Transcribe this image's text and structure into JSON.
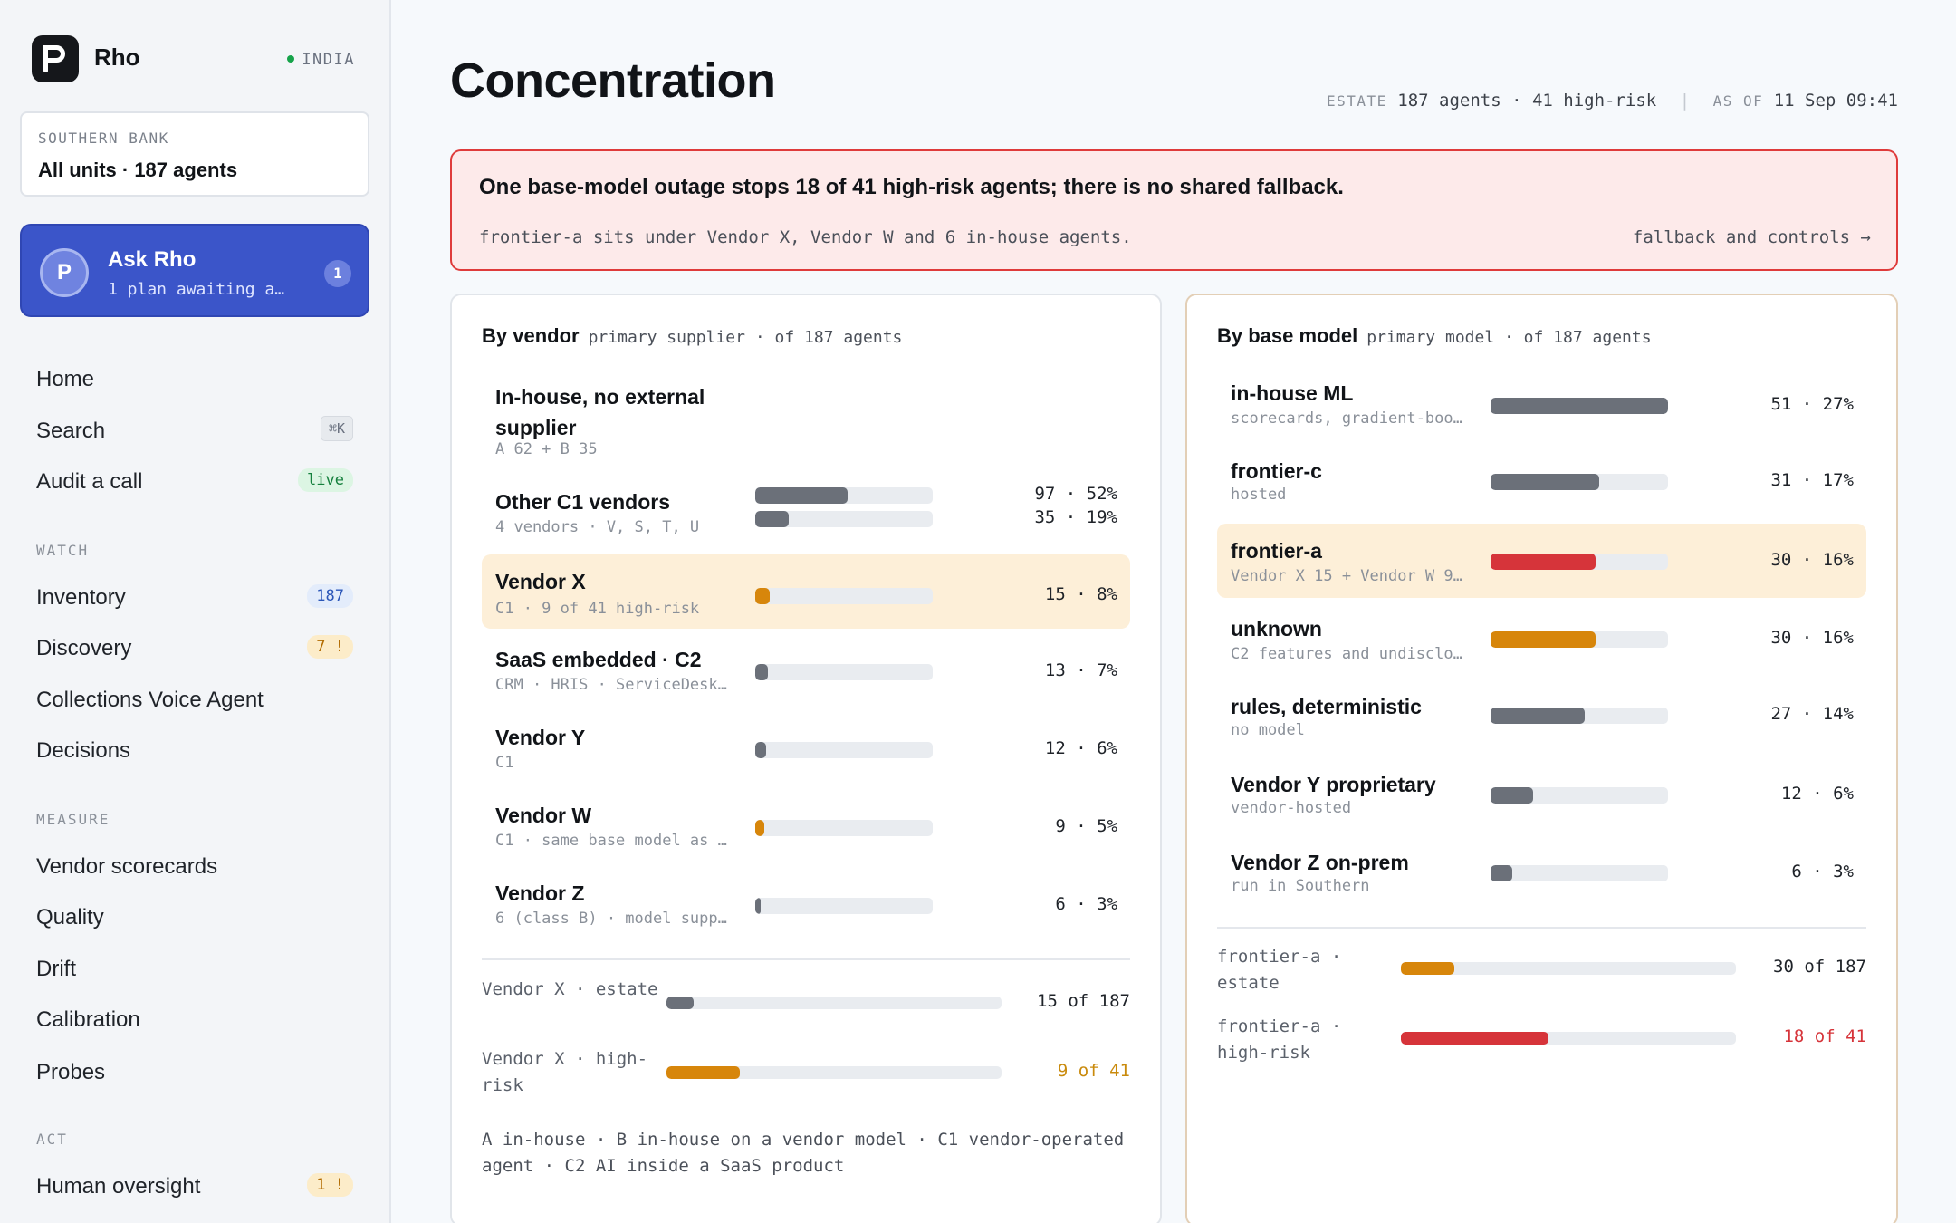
{
  "app": {
    "name": "Rho",
    "region": "INDIA"
  },
  "org": {
    "label": "SOUTHERN BANK",
    "value": "All units · 187 agents"
  },
  "ask": {
    "title": "Ask Rho",
    "subtitle": "1 plan awaiting a…",
    "badge": "1",
    "avatar_letter": "P"
  },
  "nav": {
    "home": "Home",
    "search": "Search",
    "search_shortcut": "⌘K",
    "audit": "Audit a call",
    "audit_badge": "live",
    "watch_label": "WATCH",
    "inventory": "Inventory",
    "inventory_badge": "187",
    "discovery": "Discovery",
    "discovery_badge": "7 !",
    "collections": "Collections Voice Agent",
    "decisions": "Decisions",
    "measure_label": "MEASURE",
    "scorecards": "Vendor scorecards",
    "quality": "Quality",
    "drift": "Drift",
    "calibration": "Calibration",
    "probes": "Probes",
    "act_label": "ACT",
    "oversight": "Human oversight",
    "oversight_badge": "1 !"
  },
  "page": {
    "title": "Concentration",
    "estate_label": "ESTATE",
    "estate_value": "187 agents · 41 high-risk",
    "separator": "|",
    "asof_label": "AS OF",
    "asof_value": "11 Sep 09:41"
  },
  "alert": {
    "headline": "One base-model outage stops 18 of 41 high-risk agents; there is no shared fallback.",
    "detail": "frontier-a sits under Vendor X, Vendor W and 6 in-house agents.",
    "link": "fallback and controls →"
  },
  "vendor_panel": {
    "title": "By vendor",
    "subtitle": "primary supplier · of 187 agents",
    "rows": [
      {
        "name": "In-house, no external supplier",
        "sub": "A 62 + B 35",
        "value": "97 · 52%",
        "share": 0.52,
        "color": "gray"
      },
      {
        "name": "Other C1 vendors",
        "sub": "4 vendors · V, S, T, U",
        "value": "35 · 19%",
        "share": 0.19,
        "color": "gray"
      },
      {
        "name": "Vendor X",
        "sub": "C1 · 9 of 41 high-risk",
        "value": "15 · 8%",
        "share": 0.08,
        "color": "orange",
        "highlight": true
      },
      {
        "name": "SaaS embedded · C2",
        "sub": "CRM · HRIS · ServiceDesk…",
        "value": "13 · 7%",
        "share": 0.07,
        "color": "gray"
      },
      {
        "name": "Vendor Y",
        "sub": "C1",
        "value": "12 · 6%",
        "share": 0.06,
        "color": "gray"
      },
      {
        "name": "Vendor W",
        "sub": "C1 · same base model as …",
        "value": "9 · 5%",
        "share": 0.05,
        "color": "orange"
      },
      {
        "name": "Vendor Z",
        "sub": "6 (class B) · model supp…",
        "value": "6 · 3%",
        "share": 0.03,
        "color": "gray"
      }
    ],
    "summary": [
      {
        "label": "Vendor X · estate",
        "value": "15 of 187",
        "share": 0.08,
        "color": "gray",
        "value_color": "#1f2329"
      },
      {
        "label": "Vendor X · high-risk",
        "value": "9 of 41",
        "share": 0.22,
        "color": "orange",
        "value_color": "#c98a0c"
      }
    ],
    "legend": "A in-house · B in-house on a vendor model · C1 vendor-operated agent · C2 AI inside a SaaS product"
  },
  "model_panel": {
    "title": "By base model",
    "subtitle": "primary model · of 187 agents",
    "rows": [
      {
        "name": "in-house ML",
        "sub": "scorecards, gradient-boo…",
        "value": "51 · 27%",
        "share": 1.0,
        "color": "gray"
      },
      {
        "name": "frontier-c",
        "sub": "hosted",
        "value": "31 · 17%",
        "share": 0.61,
        "color": "gray"
      },
      {
        "name": "frontier-a",
        "sub": "Vendor X 15 + Vendor W 9…",
        "value": "30 · 16%",
        "share": 0.59,
        "color": "red",
        "highlight": true
      },
      {
        "name": "unknown",
        "sub": "C2 features and undisclo…",
        "value": "30 · 16%",
        "share": 0.59,
        "color": "orange"
      },
      {
        "name": "rules, deterministic",
        "sub": "no model",
        "value": "27 · 14%",
        "share": 0.53,
        "color": "gray"
      },
      {
        "name": "Vendor Y proprietary",
        "sub": "vendor-hosted",
        "value": "12 · 6%",
        "share": 0.24,
        "color": "gray"
      },
      {
        "name": "Vendor Z on-prem",
        "sub": "run in Southern",
        "value": "6 · 3%",
        "share": 0.12,
        "color": "gray"
      }
    ],
    "summary": [
      {
        "label": "frontier-a · estate",
        "value": "30 of 187",
        "share": 0.16,
        "color": "orange",
        "value_color": "#1f2329"
      },
      {
        "label": "frontier-a · high-risk",
        "value": "18 of 41",
        "share": 0.44,
        "color": "red",
        "value_color": "#d6343a"
      }
    ]
  }
}
